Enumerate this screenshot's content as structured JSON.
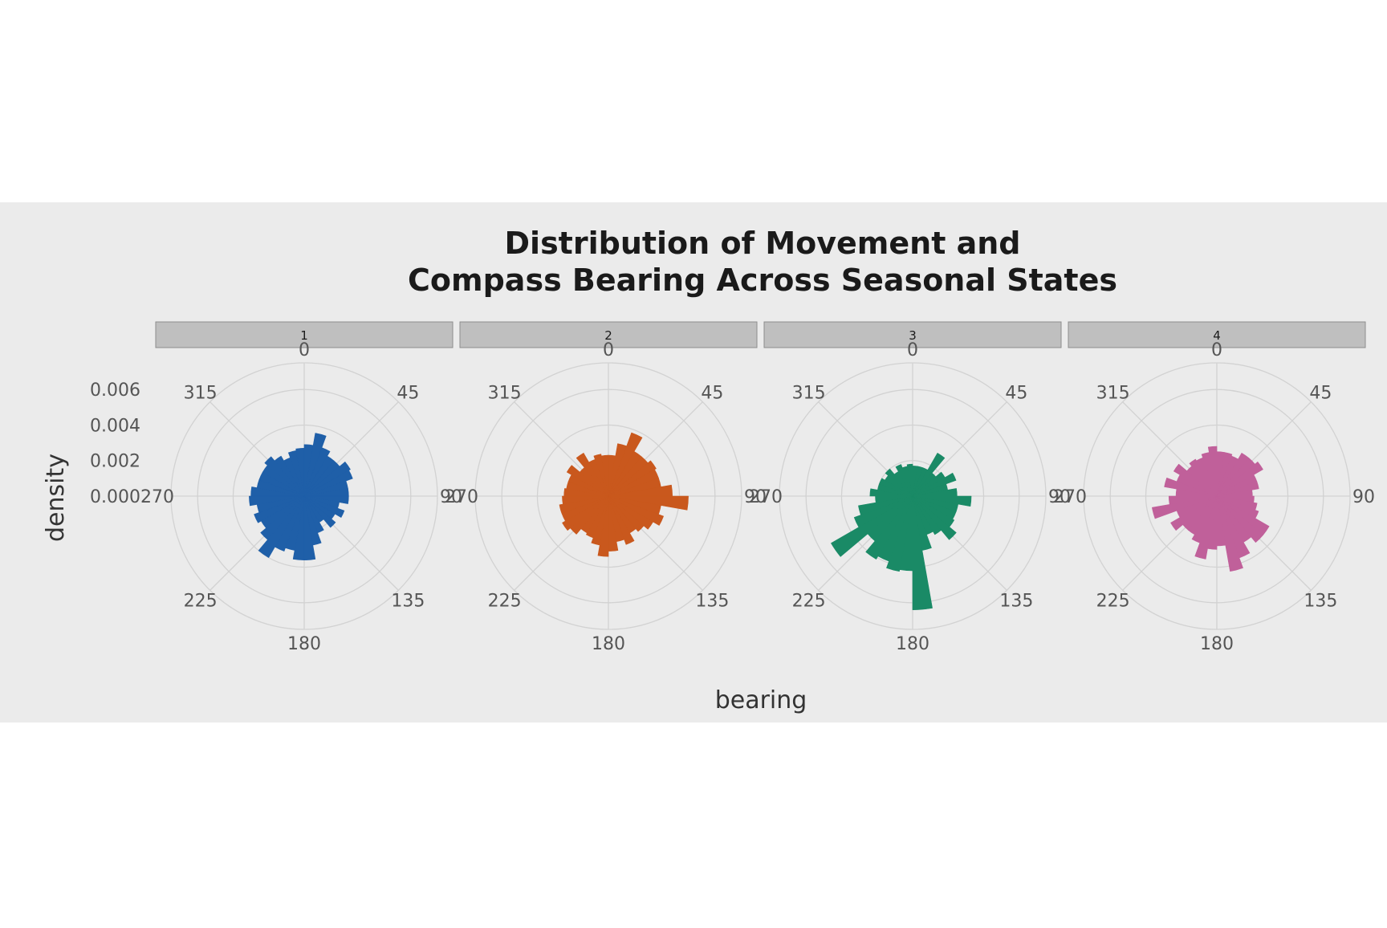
{
  "chart_data": {
    "type": "bar",
    "polar": true,
    "title_line1": "Distribution of Movement and",
    "title_line2": "Compass Bearing Across Seasonal States",
    "xlabel": "bearing",
    "ylabel": "density",
    "x_ticks": [
      "0",
      "45",
      "90",
      "135",
      "180",
      "225",
      "270",
      "315"
    ],
    "y_ticks": [
      "0.000",
      "0.002",
      "0.004",
      "0.006"
    ],
    "ylim": [
      0,
      0.0075
    ],
    "bin_width_degrees": 10,
    "bin_centers": [
      5,
      15,
      25,
      35,
      45,
      55,
      65,
      75,
      85,
      95,
      105,
      115,
      125,
      135,
      145,
      155,
      165,
      175,
      185,
      195,
      205,
      215,
      225,
      235,
      245,
      255,
      265,
      275,
      285,
      295,
      305,
      315,
      325,
      335,
      345,
      355
    ],
    "panels": [
      {
        "label": "1",
        "color": "#1f5fa8",
        "values": [
          0.0029,
          0.0036,
          0.0029,
          0.0026,
          0.0026,
          0.003,
          0.0029,
          0.0025,
          0.0025,
          0.0025,
          0.002,
          0.0024,
          0.002,
          0.0023,
          0.0017,
          0.0022,
          0.0028,
          0.0036,
          0.0036,
          0.0031,
          0.0033,
          0.004,
          0.0032,
          0.0028,
          0.003,
          0.0027,
          0.0031,
          0.003,
          0.0027,
          0.0027,
          0.0027,
          0.0029,
          0.0026,
          0.0023,
          0.0026,
          0.0027
        ]
      },
      {
        "label": "2",
        "color": "#c9581d",
        "values": [
          0.0023,
          0.003,
          0.0038,
          0.0029,
          0.0029,
          0.0031,
          0.003,
          0.003,
          0.0036,
          0.0045,
          0.003,
          0.0033,
          0.0029,
          0.0026,
          0.0024,
          0.0029,
          0.0026,
          0.0031,
          0.0034,
          0.0028,
          0.0025,
          0.0024,
          0.0028,
          0.003,
          0.0028,
          0.0028,
          0.0026,
          0.0025,
          0.0024,
          0.0024,
          0.0027,
          0.0021,
          0.0028,
          0.0022,
          0.0024,
          0.0023
        ]
      },
      {
        "label": "3",
        "color": "#1a8a66",
        "values": [
          0.0017,
          0.0017,
          0.0017,
          0.0028,
          0.0017,
          0.0021,
          0.0026,
          0.002,
          0.0025,
          0.0033,
          0.0026,
          0.0026,
          0.0027,
          0.0032,
          0.0025,
          0.0023,
          0.0031,
          0.0064,
          0.0042,
          0.0043,
          0.0039,
          0.0041,
          0.0033,
          0.0053,
          0.0035,
          0.0031,
          0.0021,
          0.0024,
          0.002,
          0.002,
          0.0018,
          0.002,
          0.0016,
          0.0019,
          0.0017,
          0.0018
        ]
      },
      {
        "label": "4",
        "color": "#c0609a",
        "values": [
          0.0025,
          0.0025,
          0.0024,
          0.0028,
          0.0028,
          0.003,
          0.0024,
          0.0024,
          0.002,
          0.0021,
          0.0023,
          0.0025,
          0.0034,
          0.0034,
          0.003,
          0.0037,
          0.0043,
          0.0028,
          0.003,
          0.0036,
          0.0028,
          0.0025,
          0.0025,
          0.003,
          0.0024,
          0.0037,
          0.0027,
          0.0023,
          0.003,
          0.0024,
          0.0028,
          0.0022,
          0.0024,
          0.0023,
          0.0025,
          0.0028
        ]
      }
    ],
    "colors": {
      "panel_background": "#ebebeb",
      "strip_fill": "#bfbfbf",
      "grid": "#d2d2d2"
    },
    "grid": true,
    "legend": "none"
  }
}
